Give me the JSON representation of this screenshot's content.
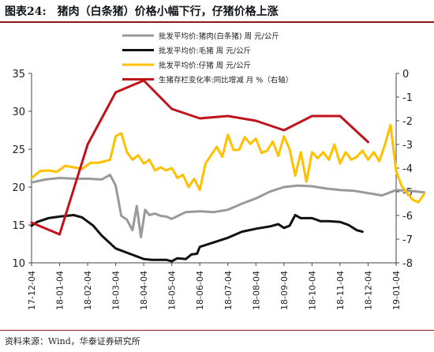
{
  "header": {
    "figure_number": "图表24:",
    "title": "猪肉（白条猪）价格小幅下行，仔猪价格上涨"
  },
  "footer": {
    "source": "资料来源：Wind，华泰证券研究所"
  },
  "chart_data": {
    "type": "line",
    "title": "",
    "xlabel": "",
    "ylabel": "",
    "x_tick_labels": [
      "17-12-04",
      "18-01-04",
      "18-02-04",
      "18-03-04",
      "18-04-04",
      "18-05-04",
      "18-06-04",
      "18-07-04",
      "18-08-04",
      "18-09-04",
      "18-10-04",
      "18-11-04",
      "18-12-04",
      "19-01-04"
    ],
    "ylim": [
      10,
      35
    ],
    "y_ticks": [
      10,
      15,
      20,
      25,
      30,
      35
    ],
    "y2lim": [
      -8,
      0
    ],
    "y2_ticks": [
      0,
      -1,
      -2,
      -3,
      -4,
      -5,
      -6,
      -7,
      -8
    ],
    "grid": false,
    "legend_placement": "top",
    "series": [
      {
        "name": "批发平均价:猪肉(白条猪) 周 元/公斤",
        "axis": "left",
        "color": "#999999",
        "x": [
          0,
          0.5,
          1,
          1.5,
          2,
          2.5,
          2.8,
          3,
          3.2,
          3.4,
          3.6,
          3.75,
          3.9,
          4.05,
          4.2,
          4.4,
          4.6,
          4.8,
          5,
          5.5,
          6,
          6.5,
          7,
          7.5,
          8,
          8.5,
          9,
          9.5,
          10,
          10.5,
          11,
          11.5,
          12,
          12.5,
          13,
          13.5,
          14
        ],
        "y": [
          20.6,
          21.0,
          21.2,
          21.1,
          21.1,
          21.0,
          21.6,
          20.2,
          16.2,
          15.7,
          14.3,
          17.5,
          13.4,
          17.0,
          16.3,
          16.5,
          16.2,
          16.1,
          15.8,
          16.7,
          16.8,
          16.7,
          17.0,
          17.8,
          18.5,
          19.4,
          20.0,
          20.2,
          20.1,
          19.8,
          19.6,
          19.5,
          19.2,
          18.9,
          19.6,
          19.5,
          19.3
        ]
      },
      {
        "name": "批发平均价:毛猪 周 元/公斤",
        "axis": "left",
        "color": "#111111",
        "x": [
          0,
          0.2,
          0.6,
          1,
          1.5,
          1.8,
          2.2,
          2.5,
          3,
          3.5,
          4,
          4.3,
          4.8,
          5,
          5.2,
          5.5,
          5.7,
          5.9,
          6,
          6.5,
          7,
          7.5,
          8,
          8.5,
          8.8,
          9,
          9.2,
          9.4,
          9.6,
          10,
          10.3,
          10.6,
          11,
          11.3,
          11.6,
          11.8
        ],
        "y": [
          14.9,
          15.4,
          15.9,
          16.1,
          16.3,
          16.0,
          14.9,
          13.6,
          11.9,
          11.2,
          10.5,
          10.4,
          10.4,
          10.2,
          10.6,
          10.5,
          11.1,
          11.2,
          12.1,
          12.7,
          13.3,
          14.1,
          14.5,
          14.8,
          15.1,
          14.6,
          14.9,
          16.3,
          15.9,
          15.9,
          15.5,
          15.5,
          15.4,
          15.0,
          14.3,
          14.1
        ]
      },
      {
        "name": "批发平均价:仔猪 周 元/公斤",
        "axis": "left",
        "color": "#ffc000",
        "x": [
          0,
          0.3,
          0.6,
          0.9,
          1.2,
          1.5,
          1.8,
          2.1,
          2.4,
          2.8,
          3.0,
          3.2,
          3.4,
          3.6,
          3.8,
          4.0,
          4.2,
          4.4,
          4.6,
          4.8,
          5.0,
          5.2,
          5.4,
          5.6,
          5.8,
          6.0,
          6.2,
          6.4,
          6.6,
          6.8,
          7.0,
          7.2,
          7.4,
          7.6,
          7.8,
          8.0,
          8.2,
          8.4,
          8.6,
          8.8,
          9.0,
          9.2,
          9.4,
          9.6,
          9.8,
          10.0,
          10.2,
          10.4,
          10.6,
          10.8,
          11.0,
          11.2,
          11.4,
          11.6,
          11.8,
          12.0,
          12.2,
          12.4,
          12.6,
          12.8,
          13.0,
          13.2,
          13.4,
          13.6,
          13.8,
          14.0
        ],
        "y": [
          21.2,
          22.1,
          22.2,
          22.0,
          22.8,
          22.6,
          22.4,
          23.2,
          23.2,
          23.6,
          26.7,
          27.1,
          24.6,
          23.6,
          24.2,
          23.1,
          23.6,
          22.2,
          22.6,
          22.2,
          22.5,
          21.2,
          21.6,
          20.0,
          21.1,
          19.6,
          23.1,
          24.2,
          25.3,
          24.0,
          26.9,
          24.9,
          24.9,
          26.6,
          25.7,
          26.4,
          24.5,
          24.8,
          26.0,
          24.1,
          26.7,
          25.0,
          21.5,
          24.6,
          20.7,
          24.6,
          23.8,
          24.6,
          23.6,
          25.6,
          23.1,
          24.6,
          23.6,
          24.0,
          24.8,
          23.6,
          24.6,
          23.4,
          25.6,
          28.2,
          22.1,
          20.1,
          19.2,
          18.3,
          18.0,
          19.1
        ]
      },
      {
        "name": "生猪存栏变化率:同比增减 月 %（右轴）",
        "axis": "right",
        "color": "#c0141d",
        "x": [
          0,
          1,
          2,
          3,
          4,
          5,
          6,
          7,
          8,
          9,
          10,
          11,
          12
        ],
        "y": [
          -6.3,
          -6.8,
          -3.0,
          -0.8,
          -0.3,
          -1.5,
          -1.9,
          -1.8,
          -2.0,
          -2.4,
          -1.8,
          -1.8,
          -2.9
        ]
      }
    ]
  }
}
